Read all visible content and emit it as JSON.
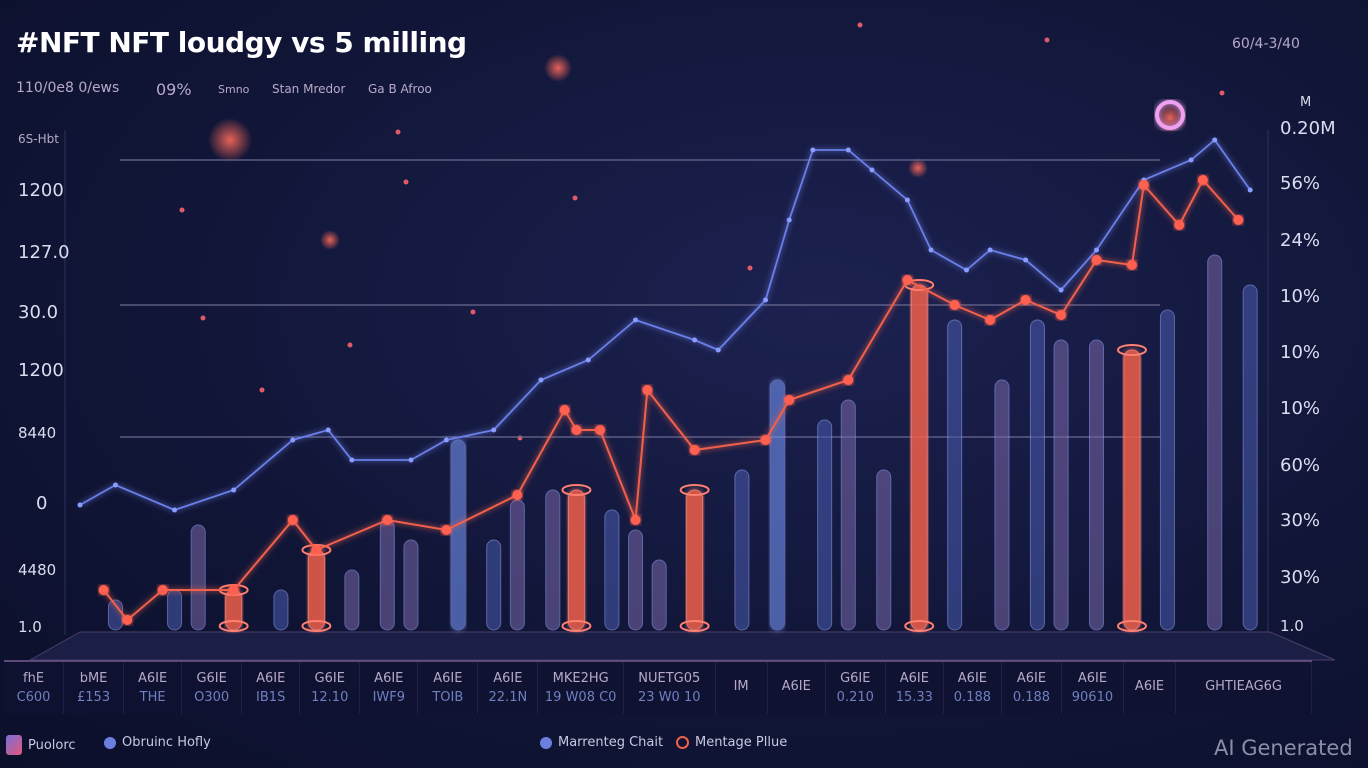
{
  "header": {
    "title": "#NFT NFT loudgy vs 5 milling",
    "subtitle_items": [
      "110/0e8 0/ews",
      "09%",
      "Smno",
      "Stan Mredor",
      "Ga B Afroo"
    ],
    "top_right": "60/4-3/40"
  },
  "chart_data": {
    "type": "bar",
    "title": "#NFT NFT loudgy vs 5 milling",
    "ylim": [
      0,
      100
    ],
    "xlim": [
      0,
      100
    ],
    "left_axis_ticks": [
      "6S-Hbt",
      "1200",
      "127.0",
      "30.0",
      "1200",
      "8440",
      "0",
      "4480",
      "1.0"
    ],
    "right_axis_ticks": [
      "M",
      "0.20M",
      "56%",
      "24%",
      "10%",
      "10%",
      "10%",
      "60%",
      "30%",
      "30%",
      "1.0"
    ],
    "grid": "horizontal",
    "bars": {
      "x": [
        3,
        8,
        10,
        13,
        17,
        20,
        23,
        26,
        28,
        32,
        35,
        37,
        40,
        42,
        45,
        47,
        49,
        52,
        56,
        59,
        63,
        65,
        68,
        71,
        74,
        78,
        81,
        83,
        86,
        89,
        92,
        96,
        99
      ],
      "values": [
        6,
        8,
        21,
        8,
        8,
        16,
        12,
        22,
        18,
        38,
        18,
        26,
        28,
        28,
        24,
        20,
        14,
        28,
        32,
        50,
        42,
        46,
        32,
        69,
        62,
        50,
        62,
        58,
        58,
        56,
        64,
        75,
        69
      ],
      "kinds": [
        "blue",
        "blue",
        "purple",
        "red",
        "blue",
        "red",
        "purple",
        "purple",
        "purple",
        "bright",
        "blue",
        "purple",
        "purple",
        "red",
        "blue",
        "purple",
        "purple",
        "red",
        "blue",
        "bright",
        "blue",
        "purple",
        "purple",
        "red",
        "blue",
        "purple",
        "blue",
        "purple",
        "purple",
        "red",
        "blue",
        "purple",
        "blue"
      ]
    },
    "series": [
      {
        "name": "Obruinc Hofly",
        "color": "#6b7fe8",
        "x": [
          0,
          3,
          8,
          13,
          18,
          21,
          23,
          28,
          31,
          35,
          39,
          43,
          47,
          52,
          54,
          58,
          60,
          62,
          65,
          67,
          70,
          72,
          75,
          77,
          80,
          83,
          86,
          90,
          94,
          96,
          99
        ],
        "values": [
          25,
          29,
          24,
          28,
          38,
          40,
          34,
          34,
          38,
          40,
          50,
          54,
          62,
          58,
          56,
          66,
          82,
          96,
          96,
          92,
          86,
          76,
          72,
          76,
          74,
          68,
          76,
          90,
          94,
          98,
          88
        ]
      },
      {
        "name": "Mentage Pllue",
        "color": "#f0604c",
        "x": [
          2,
          4,
          7,
          13,
          18,
          20,
          26,
          31,
          37,
          41,
          42,
          44,
          47,
          48,
          52,
          58,
          60,
          65,
          70,
          74,
          77,
          80,
          83,
          86,
          89,
          90,
          93,
          95,
          98
        ],
        "values": [
          8,
          2,
          8,
          8,
          22,
          16,
          22,
          20,
          27,
          44,
          40,
          40,
          22,
          48,
          36,
          38,
          46,
          50,
          70,
          65,
          62,
          66,
          63,
          74,
          73,
          89,
          81,
          90,
          82
        ]
      }
    ],
    "legend": [
      "Puolorc",
      "Obruinc Hofly",
      "Marrenteg Chait",
      "Mentage Pllue"
    ]
  },
  "table": {
    "headers": [
      "fhE",
      "bME",
      "A6IE",
      "G6IE",
      "A6IE",
      "G6IE",
      "A6IE",
      "A6IE",
      "A6IE",
      "MKE2HG",
      "NUETG05",
      "IM",
      "A6IE",
      "G6IE",
      "A6IE",
      "A6IE",
      "A6IE",
      "A6IE",
      "A6IE",
      "GHTIEAG6G"
    ],
    "values": [
      "C600",
      "£153",
      "THE",
      "O300",
      "IB1S",
      "12.10",
      "IWF9",
      "TOIB",
      "22.1N",
      "19 W08 C0",
      "23 W0 10",
      "",
      "",
      "0.210",
      "15.33",
      "0.188",
      "0.188",
      "90610",
      "",
      ""
    ]
  },
  "watermark": "AI Generated",
  "colors": {
    "blue": "#5f74d8",
    "purple": "#8c74b8",
    "red": "#f0604c",
    "bright": "#7a9cff"
  }
}
